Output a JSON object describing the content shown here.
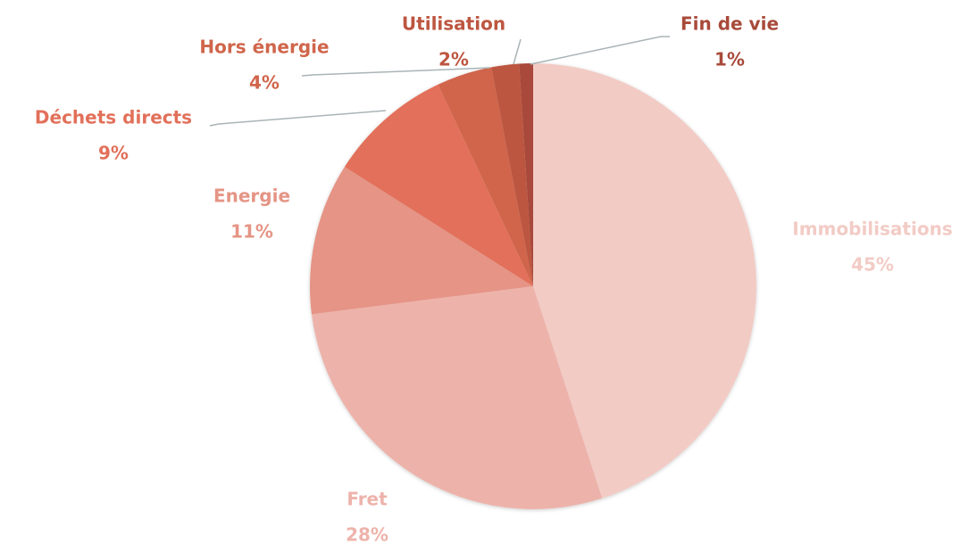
{
  "chart_data": {
    "type": "pie",
    "categories": [
      "Immobilisations",
      "Fret",
      "Energie",
      "Déchets directs",
      "Hors énergie",
      "Utilisation",
      "Fin de vie"
    ],
    "values": [
      45,
      28,
      11,
      9,
      4,
      2,
      1
    ],
    "value_labels": [
      "45%",
      "28%",
      "11%",
      "9%",
      "4%",
      "2%",
      "1%"
    ],
    "colors": [
      "#f2cbc5",
      "#edb3ab",
      "#e59485",
      "#e2705a",
      "#d0654b",
      "#bd5640",
      "#a84a3a"
    ]
  }
}
